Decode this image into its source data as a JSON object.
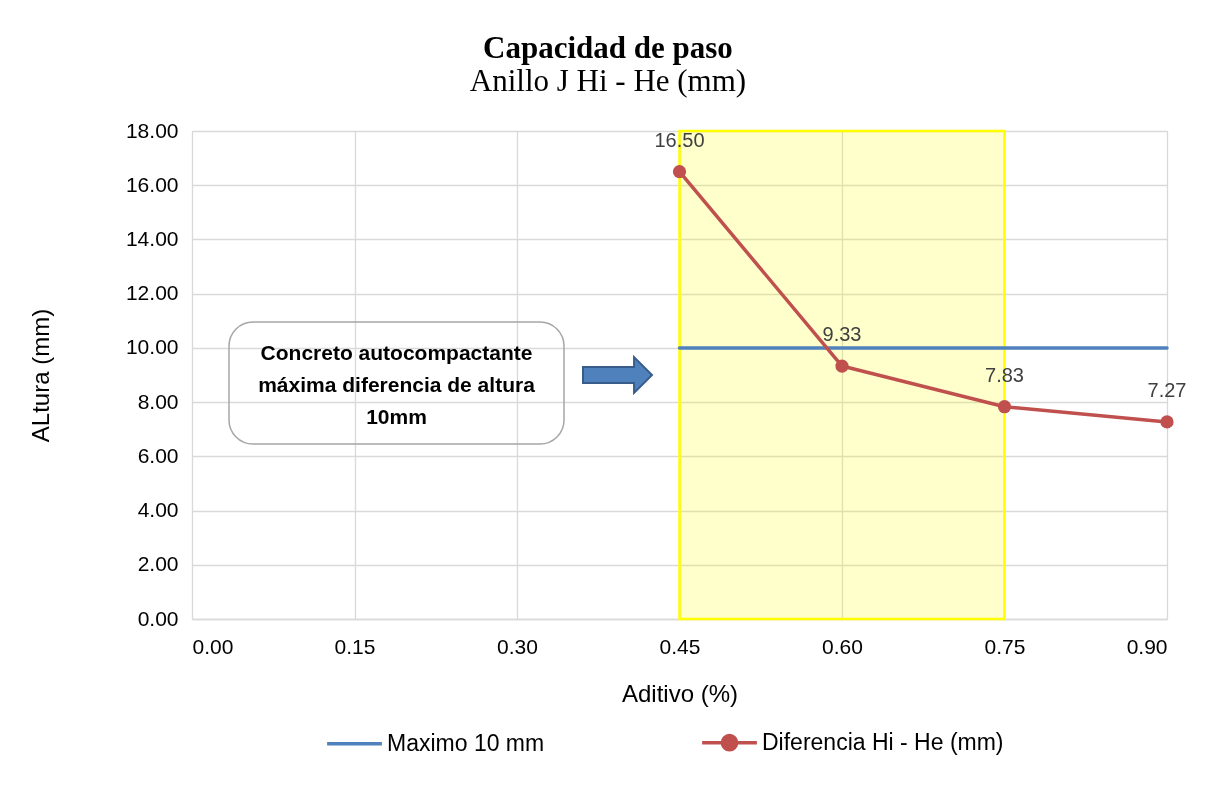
{
  "chart_data": {
    "type": "line",
    "title": "Capacidad de paso",
    "subtitle": "Anillo J Hi - He (mm)",
    "xlabel": "Aditivo (%)",
    "ylabel": "ALtura (mm)",
    "x": [
      0.45,
      0.6,
      0.75,
      0.9
    ],
    "series": [
      {
        "name": "Maximo 10 mm",
        "color": "#4f81bd",
        "values": [
          10,
          10,
          10,
          10
        ],
        "marker": "none"
      },
      {
        "name": "Diferencia Hi - He (mm)",
        "color": "#c0504d",
        "values": [
          16.5,
          9.33,
          7.83,
          7.27
        ],
        "marker": "circle",
        "value_labels": [
          "16.50",
          "9.33",
          "7.83",
          "7.27"
        ]
      }
    ],
    "xlim": [
      0,
      0.9
    ],
    "xticks": [
      {
        "value": 0,
        "label": "0.00"
      },
      {
        "value": 0.15,
        "label": "0.15"
      },
      {
        "value": 0.3,
        "label": "0.30"
      },
      {
        "value": 0.45,
        "label": "0.45"
      },
      {
        "value": 0.6,
        "label": "0.60"
      },
      {
        "value": 0.75,
        "label": "0.75"
      },
      {
        "value": 0.9,
        "label": "0.90"
      }
    ],
    "ylim": [
      0,
      18
    ],
    "yticks": [
      {
        "value": 0,
        "label": "0.00"
      },
      {
        "value": 2,
        "label": "2.00"
      },
      {
        "value": 4,
        "label": "4.00"
      },
      {
        "value": 6,
        "label": "6.00"
      },
      {
        "value": 8,
        "label": "8.00"
      },
      {
        "value": 10,
        "label": "10.00"
      },
      {
        "value": 12,
        "label": "12.00"
      },
      {
        "value": 14,
        "label": "14.00"
      },
      {
        "value": 16,
        "label": "16.00"
      },
      {
        "value": 18,
        "label": "18.00"
      }
    ],
    "grid": true,
    "legend": "bottom",
    "line_style": "solid",
    "bands": [
      {
        "axis": "x",
        "from": 0.45,
        "to": 0.75,
        "color": "#ffff00"
      }
    ],
    "annotations": [
      "Concreto autocompactante\nmáxima diferencia de altura\n10mm"
    ]
  }
}
